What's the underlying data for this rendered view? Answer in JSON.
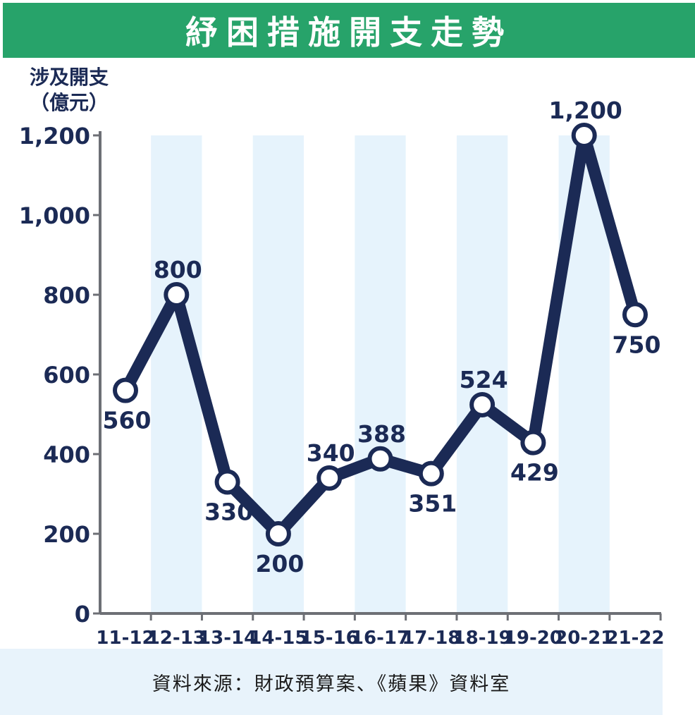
{
  "title": "紓困措施開支走勢",
  "ylabel_line1": "涉及開支",
  "ylabel_line2": "（億元）",
  "source": "資料來源：財政預算案、《蘋果》資料室",
  "colors": {
    "title_bg": "#27a36a",
    "line": "#1b2a55",
    "band": "#e6f3fc",
    "axis": "#6d6f75",
    "footer_bg": "#e8f3fb"
  },
  "chart_data": {
    "type": "line",
    "categories": [
      "11-12",
      "12-13",
      "13-14",
      "14-15",
      "15-16",
      "16-17",
      "17-18",
      "18-19",
      "19-20",
      "20-21",
      "21-22"
    ],
    "values": [
      560,
      800,
      330,
      200,
      340,
      388,
      351,
      524,
      429,
      1200,
      750
    ],
    "data_labels": [
      "560",
      "800",
      "330",
      "200",
      "340",
      "388",
      "351",
      "524",
      "429",
      "1,200",
      "750"
    ],
    "ylim": [
      0,
      1200
    ],
    "yticks": [
      0,
      200,
      400,
      600,
      800,
      1000,
      1200
    ],
    "ytick_labels": [
      "0",
      "200",
      "400",
      "600",
      "800",
      "1,000",
      "1,200"
    ],
    "grid": false
  }
}
